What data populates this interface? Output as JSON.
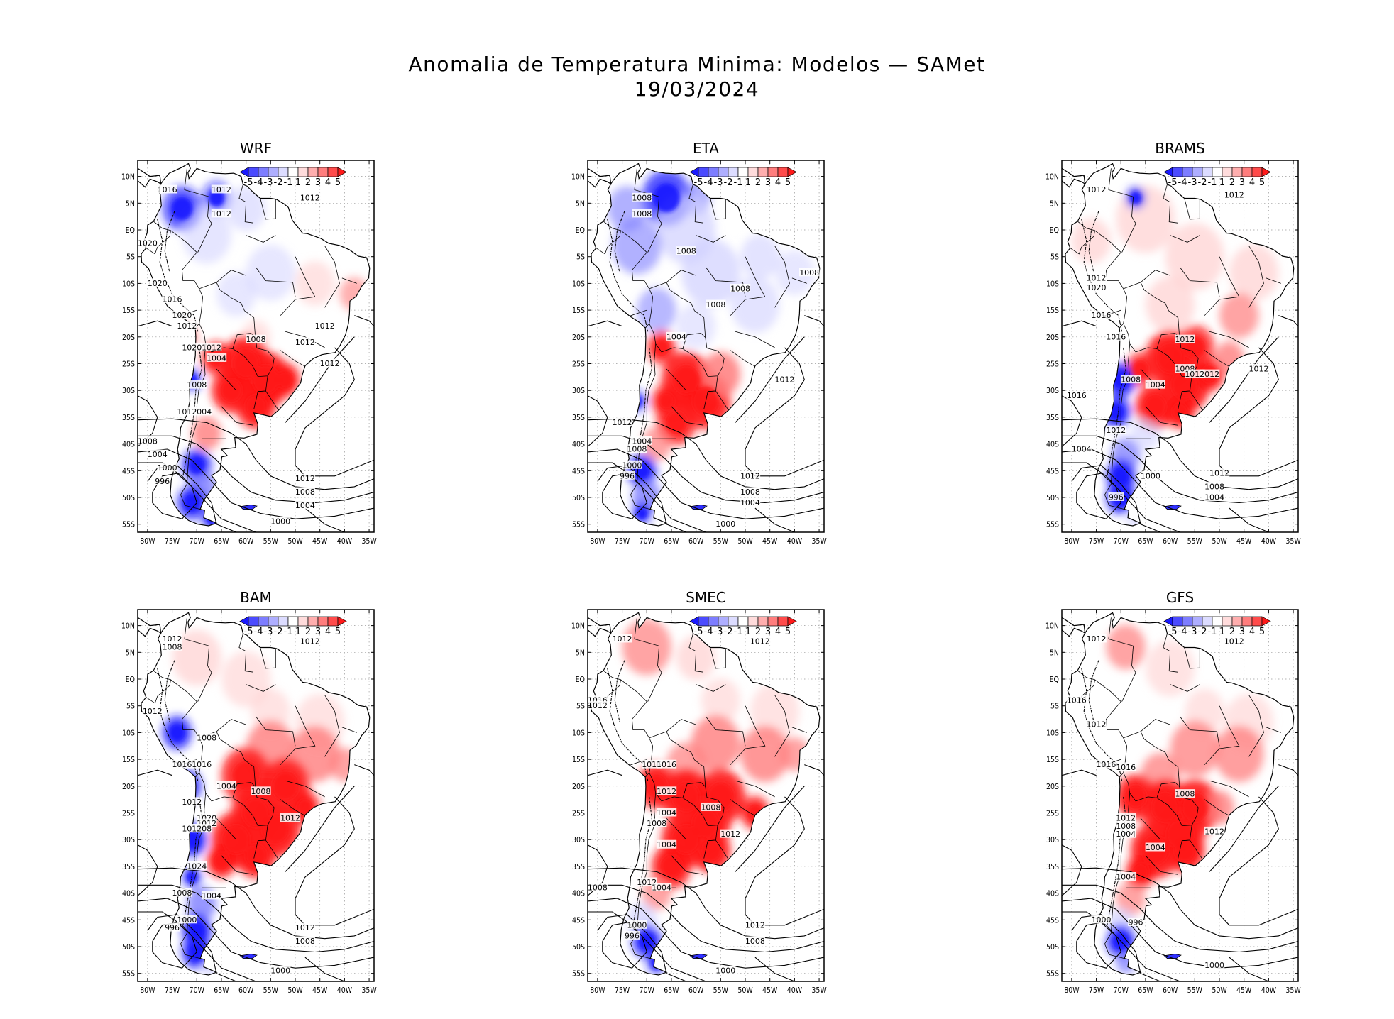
{
  "figure": {
    "title_line1": "Anomalia de Temperatura Minima: Modelos — SAMet",
    "title_line2": "19/03/2024"
  },
  "axes": {
    "lat_ticks": [
      "10N",
      "5N",
      "EQ",
      "5S",
      "10S",
      "15S",
      "20S",
      "25S",
      "30S",
      "35S",
      "40S",
      "45S",
      "50S",
      "55S"
    ],
    "lat_values": [
      10,
      5,
      0,
      -5,
      -10,
      -15,
      -20,
      -25,
      -30,
      -35,
      -40,
      -45,
      -50,
      -55
    ],
    "lon_ticks": [
      "80W",
      "75W",
      "70W",
      "65W",
      "60W",
      "55W",
      "50W",
      "45W",
      "40W",
      "35W"
    ],
    "lon_values": [
      -80,
      -75,
      -70,
      -65,
      -60,
      -55,
      -50,
      -45,
      -40,
      -35
    ],
    "lat_range": [
      -56.5,
      13
    ],
    "lon_range": [
      -82,
      -34
    ]
  },
  "colorbar": {
    "labels": [
      "-5",
      "-4",
      "-3",
      "-2",
      "-1",
      "1",
      "2",
      "3",
      "4",
      "5"
    ],
    "colors": [
      "#1a1aff",
      "#4b4bff",
      "#7d7dff",
      "#aeaeff",
      "#dcdcff",
      "#ffffff",
      "#ffdcdc",
      "#ffaeae",
      "#ff7d7d",
      "#ff4b4b",
      "#ff1a1a"
    ]
  },
  "colors": {
    "warm": "#ff1a1a",
    "warm_mid": "#ff7d7d",
    "warm_light": "#ffd0d0",
    "cold": "#1a1aff",
    "cold_mid": "#7d7dff",
    "cold_light": "#d0d0ff"
  },
  "panels": [
    {
      "title": "WRF",
      "isobars": [
        "1016",
        "1012",
        "1012",
        "1012",
        "1020",
        "1020",
        "1016",
        "1020",
        "1012",
        "1008",
        "1020",
        "1012",
        "1004",
        "1008",
        "1012",
        "1004",
        "1012",
        "1012",
        "1012",
        "1008",
        "1004",
        "1000",
        "996",
        "1012",
        "1008",
        "1004",
        "1000"
      ]
    },
    {
      "title": "ETA",
      "isobars": [
        "1008",
        "1008",
        "1008",
        "1008",
        "1008",
        "1008",
        "1004",
        "1012",
        "1012",
        "1008",
        "1004",
        "1000",
        "996",
        "1012",
        "1008",
        "1004",
        "1000"
      ]
    },
    {
      "title": "BRAMS",
      "isobars": [
        "1012",
        "1012",
        "1012",
        "1020",
        "1016",
        "1016",
        "1012",
        "1008",
        "1004",
        "1008",
        "1012",
        "1012",
        "1012",
        "1016",
        "1012",
        "1004",
        "1000",
        "996",
        "1012",
        "1008",
        "1004"
      ]
    },
    {
      "title": "BAM",
      "isobars": [
        "1012",
        "1008",
        "1012",
        "1012",
        "1008",
        "1016",
        "1016",
        "1004",
        "1008",
        "1012",
        "1012",
        "1020",
        "1012",
        "1008",
        "1012",
        "1024",
        "1008",
        "1004",
        "1000",
        "996",
        "1012",
        "1008",
        "1000"
      ]
    },
    {
      "title": "SMEC",
      "isobars": [
        "1012",
        "1012",
        "1016",
        "1012",
        "1016",
        "1016",
        "1012",
        "1008",
        "1004",
        "1008",
        "1012",
        "1004",
        "1012",
        "1004",
        "1008",
        "1000",
        "996",
        "1012",
        "1008",
        "1000"
      ]
    },
    {
      "title": "GFS",
      "isobars": [
        "1012",
        "1012",
        "1016",
        "1012",
        "1016",
        "1016",
        "1008",
        "1012",
        "1008",
        "1004",
        "1012",
        "1004",
        "1004",
        "1000",
        "996",
        "1000"
      ]
    }
  ]
}
